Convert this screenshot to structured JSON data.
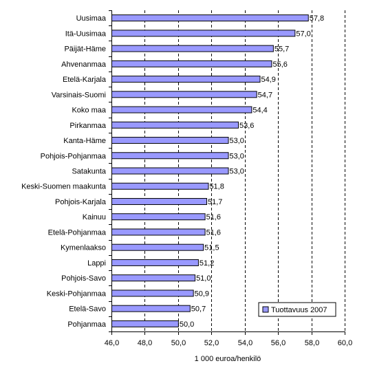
{
  "chart_data": {
    "type": "bar",
    "orientation": "horizontal",
    "categories": [
      "Uusimaa",
      "Itä-Uusimaa",
      "Päijät-Häme",
      "Ahvenanmaa",
      "Etelä-Karjala",
      "Varsinais-Suomi",
      "Koko maa",
      "Pirkanmaa",
      "Kanta-Häme",
      "Pohjois-Pohjanmaa",
      "Satakunta",
      "Keski-Suomen maakunta",
      "Pohjois-Karjala",
      "Kainuu",
      "Etelä-Pohjanmaa",
      "Kymenlaakso",
      "Lappi",
      "Pohjois-Savo",
      "Keski-Pohjanmaa",
      "Etelä-Savo",
      "Pohjanmaa"
    ],
    "series": [
      {
        "name": "Tuottavuus 2007",
        "values": [
          57.8,
          57.0,
          55.7,
          55.6,
          54.9,
          54.7,
          54.4,
          53.6,
          53.0,
          53.0,
          53.0,
          51.8,
          51.7,
          51.6,
          51.6,
          51.5,
          51.2,
          51.0,
          50.9,
          50.7,
          50.0
        ],
        "value_labels": [
          "57,8",
          "57,0",
          "55,7",
          "55,6",
          "54,9",
          "54,7",
          "54,4",
          "53,6",
          "53,0",
          "53,0",
          "53,0",
          "51,8",
          "51,7",
          "51,6",
          "51,6",
          "51,5",
          "51,2",
          "51,0",
          "50,9",
          "50,7",
          "50,0"
        ]
      }
    ],
    "xlabel": "1 000 euroa/henkilö",
    "xlim": [
      46.0,
      60.0
    ],
    "x_ticks": [
      46,
      48,
      50,
      52,
      54,
      56,
      58,
      60
    ],
    "x_tick_labels": [
      "46,0",
      "48,0",
      "50,0",
      "52,0",
      "54,0",
      "56,0",
      "58,0",
      "60,0"
    ],
    "grid": "vertical dashed",
    "legend_position": "bottom-right",
    "colors": {
      "bar_fill": "#9999ff",
      "bar_stroke": "#000000",
      "grid": "#000000",
      "axis": "#000000"
    }
  }
}
